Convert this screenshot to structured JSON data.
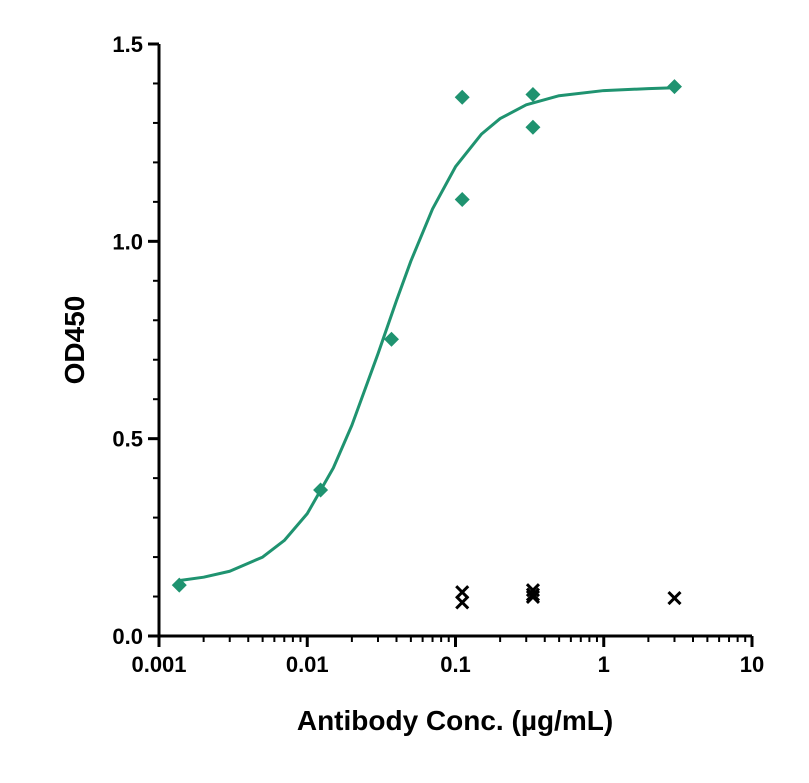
{
  "chart_data": {
    "type": "scatter",
    "xlabel": "Antibody Conc. (µg/mL)",
    "ylabel": "OD450",
    "xscale": "log",
    "xlim": [
      0.001,
      10
    ],
    "xticks": [
      0.001,
      0.01,
      0.1,
      1,
      10
    ],
    "ylim": [
      0,
      1.5
    ],
    "yticks": [
      {
        "value": 0,
        "label": "0.0"
      },
      {
        "value": 0.5,
        "label": "0.5"
      },
      {
        "value": 1,
        "label": "1.0"
      },
      {
        "value": 1.5,
        "label": "1.5"
      }
    ],
    "minor_ticks": true,
    "series": [
      {
        "type": "line",
        "color": "#1f9370",
        "x": [
          0.0014,
          0.002,
          0.003,
          0.005,
          0.007,
          0.01,
          0.015,
          0.02,
          0.03,
          0.04,
          0.05,
          0.07,
          0.1,
          0.15,
          0.2,
          0.3,
          0.5,
          1,
          2,
          3
        ],
        "values": [
          0.141,
          0.149,
          0.164,
          0.2,
          0.242,
          0.31,
          0.426,
          0.534,
          0.715,
          0.85,
          0.95,
          1.082,
          1.189,
          1.272,
          1.311,
          1.346,
          1.369,
          1.382,
          1.387,
          1.389
        ]
      },
      {
        "type": "scatter",
        "marker": "diamond",
        "color": "#1f9370",
        "x": [
          0.00137,
          0.0123,
          0.037,
          0.111,
          0.111,
          0.333,
          0.333,
          3
        ],
        "values": [
          0.129,
          0.37,
          0.752,
          1.365,
          1.106,
          1.372,
          1.289,
          1.392
        ]
      },
      {
        "type": "scatter",
        "marker": "cross",
        "color": "#000000",
        "x": [
          0.111,
          0.111,
          0.333,
          0.333,
          0.333,
          3
        ],
        "values": [
          0.111,
          0.085,
          0.116,
          0.105,
          0.099,
          0.096
        ]
      }
    ]
  }
}
